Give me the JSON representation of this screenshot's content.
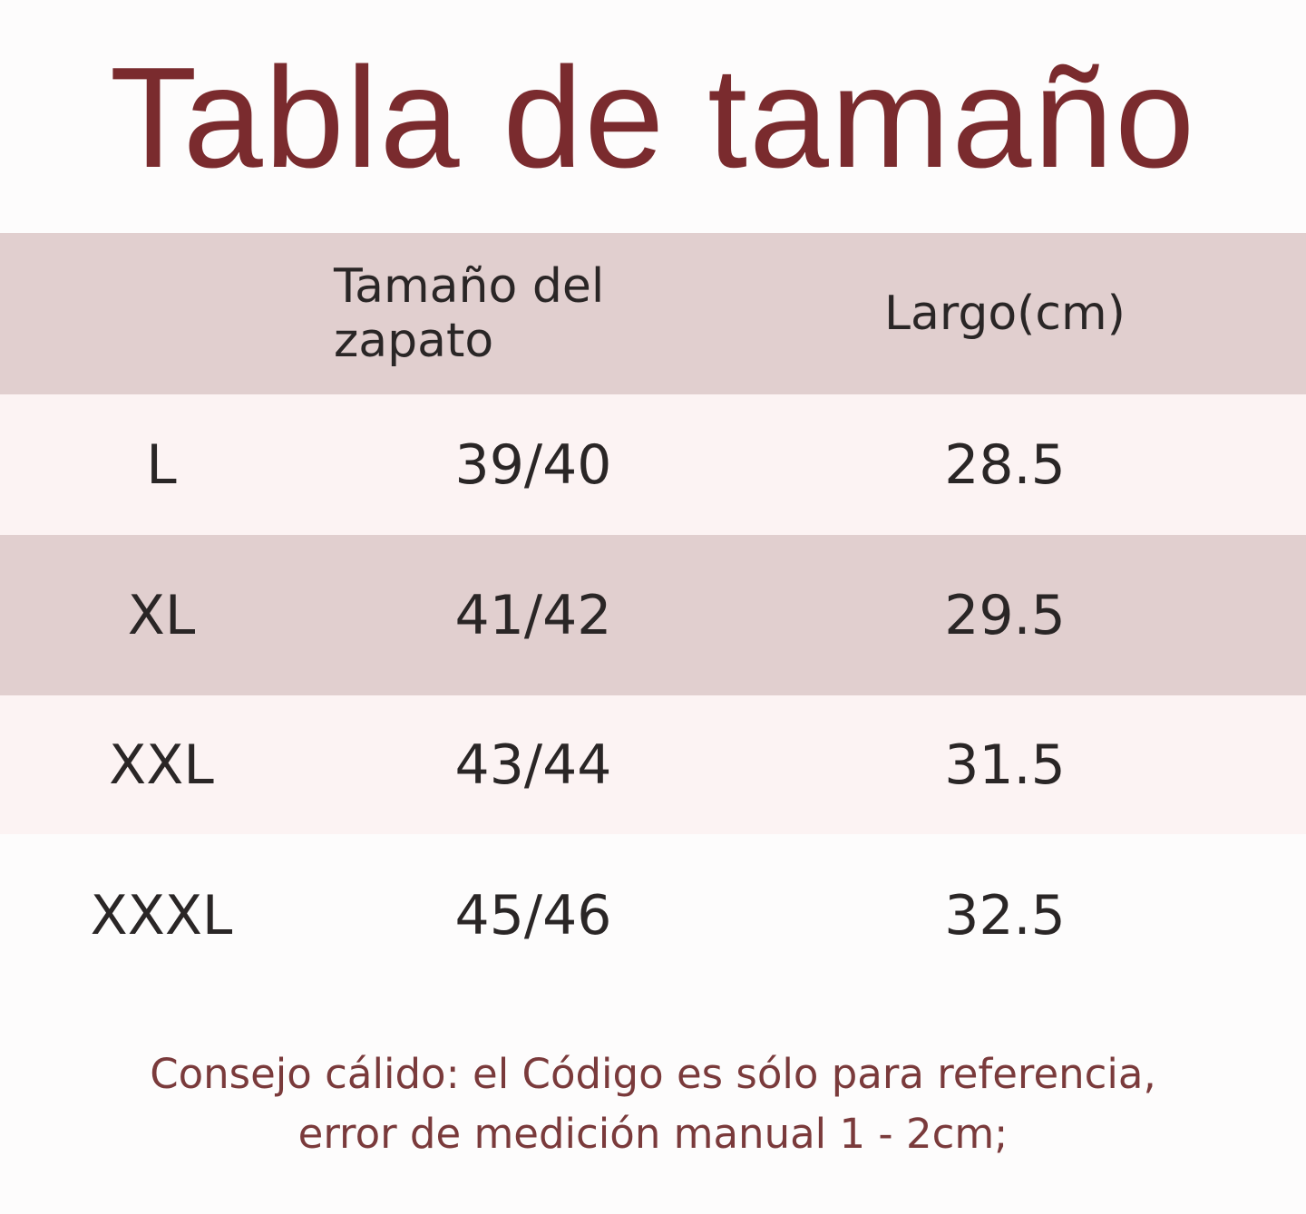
{
  "title": "Tabla de tamaño",
  "table": {
    "headers": [
      "",
      "Tamaño del zapato",
      "Largo(cm)"
    ],
    "rows": [
      [
        "L",
        "39/40",
        "28.5"
      ],
      [
        "XL",
        "41/42",
        "29.5"
      ],
      [
        "XXL",
        "43/44",
        "31.5"
      ],
      [
        "XXXL",
        "45/46",
        "32.5"
      ]
    ]
  },
  "note": {
    "line1": "Consejo cálido: el Código es sólo para referencia,",
    "line2": "error de medición manual 1 - 2cm;"
  },
  "colors": {
    "title": "#7a2b2e",
    "band": "#e1cfcf",
    "light_row": "#fcf3f3",
    "note": "#7a3a3b"
  }
}
